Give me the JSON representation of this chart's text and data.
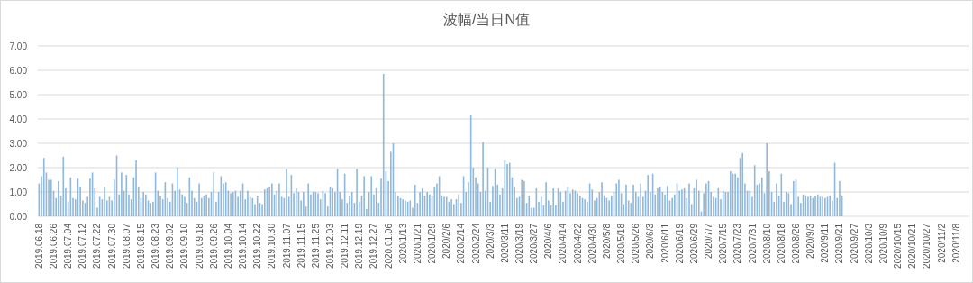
{
  "chart_data": {
    "type": "bar",
    "title": "波幅/当日N值",
    "categories": [
      "2019.06.18",
      null,
      null,
      null,
      null,
      null,
      "2019.06.26",
      null,
      null,
      null,
      null,
      null,
      "2019.07.04",
      null,
      null,
      null,
      null,
      null,
      "2019.07.12",
      null,
      null,
      null,
      null,
      null,
      "2019.07.22",
      null,
      null,
      null,
      null,
      null,
      "2019.07.30",
      null,
      null,
      null,
      null,
      null,
      "2019.08.07",
      null,
      null,
      null,
      null,
      null,
      "2019.08.15",
      null,
      null,
      null,
      null,
      null,
      "2019.08.23",
      null,
      null,
      null,
      null,
      null,
      "2019.09.02",
      null,
      null,
      null,
      null,
      null,
      "2019.09.10",
      null,
      null,
      null,
      null,
      null,
      "2019.09.18",
      null,
      null,
      null,
      null,
      null,
      "2019.09.26",
      null,
      null,
      null,
      null,
      null,
      "2019.10.04",
      null,
      null,
      null,
      null,
      null,
      "2019.10.14",
      null,
      null,
      null,
      null,
      null,
      "2019.10.22",
      null,
      null,
      null,
      null,
      null,
      "2019.10.30",
      null,
      null,
      null,
      null,
      null,
      "2019.11.07",
      null,
      null,
      null,
      null,
      null,
      "2019.11.15",
      null,
      null,
      null,
      null,
      null,
      "2019.11.25",
      null,
      null,
      null,
      null,
      null,
      "2019.12.03",
      null,
      null,
      null,
      null,
      null,
      "2019.12.11",
      null,
      null,
      null,
      null,
      null,
      "2019.12.19",
      null,
      null,
      null,
      null,
      null,
      "2019.12.27",
      null,
      null,
      null,
      null,
      null,
      "2020.01.06",
      null,
      null,
      null,
      null,
      null,
      "2020/1/13",
      null,
      null,
      null,
      null,
      null,
      "2020/1/21",
      null,
      null,
      null,
      null,
      null,
      "2020/1/29",
      null,
      null,
      null,
      null,
      null,
      "2020/2/6",
      null,
      null,
      null,
      null,
      null,
      "2020/2/14",
      null,
      null,
      null,
      null,
      null,
      "2020/2/24",
      null,
      null,
      null,
      null,
      null,
      "2020/3/3",
      null,
      null,
      null,
      null,
      null,
      "2020/3/11",
      null,
      null,
      null,
      null,
      null,
      "2020/3/19",
      null,
      null,
      null,
      null,
      null,
      "2020/3/27",
      null,
      null,
      null,
      null,
      null,
      "2020/4/6",
      null,
      null,
      null,
      null,
      null,
      "2020/4/14",
      null,
      null,
      null,
      null,
      null,
      "2020/4/22",
      null,
      null,
      null,
      null,
      null,
      "2020/4/30",
      null,
      null,
      null,
      null,
      null,
      "2020/5/8",
      null,
      null,
      null,
      null,
      null,
      "2020/5/18",
      null,
      null,
      null,
      null,
      null,
      "2020/5/26",
      null,
      null,
      null,
      null,
      null,
      "2020/6/3",
      null,
      null,
      null,
      null,
      null,
      "2020/6/11",
      null,
      null,
      null,
      null,
      null,
      "2020/6/19",
      null,
      null,
      null,
      null,
      null,
      "2020/6/29",
      null,
      null,
      null,
      null,
      null,
      "2020/7/7",
      null,
      null,
      null,
      null,
      null,
      "2020/7/15",
      null,
      null,
      null,
      null,
      null,
      "2020/7/23",
      null,
      null,
      null,
      null,
      null,
      "2020/7/31",
      null,
      null,
      null,
      null,
      null,
      "2020/8/10",
      null,
      null,
      null,
      null,
      null,
      "2020/8/18",
      null,
      null,
      null,
      null,
      null,
      "2020/8/26",
      null,
      null,
      null,
      null,
      null,
      "2020/9/3",
      null,
      null,
      null,
      null,
      null,
      "2020/9/11",
      null,
      null,
      null,
      null,
      null,
      "2020/9/21",
      null,
      null,
      null,
      null,
      null,
      "2020/9/27",
      null,
      null,
      null,
      null,
      null,
      "2020/10/3",
      null,
      null,
      null,
      null,
      null,
      "2020/10/9",
      null,
      null,
      null,
      null,
      null,
      "2020/10/15",
      null,
      null,
      null,
      null,
      null,
      "2020/10/21",
      null,
      null,
      null,
      null,
      null,
      "2020/10/27",
      null,
      null,
      null,
      null,
      null,
      "2020/11/2",
      null,
      null,
      null,
      null,
      null,
      "2020/11/8",
      null,
      null,
      null,
      null,
      null
    ],
    "values": [
      1.35,
      1.65,
      2.4,
      1.8,
      1.5,
      1.5,
      1.05,
      0.75,
      1.45,
      0.85,
      2.45,
      1.15,
      0.6,
      1.6,
      0.75,
      0.7,
      1.55,
      1.2,
      0.65,
      0.55,
      0.8,
      1.55,
      1.8,
      1.15,
      0.35,
      0.8,
      0.7,
      1.2,
      0.65,
      0.8,
      0.65,
      1.5,
      2.5,
      0.9,
      1.8,
      1.05,
      1.7,
      0.9,
      0.7,
      1.6,
      2.3,
      1.2,
      0.75,
      1.0,
      0.9,
      0.65,
      0.55,
      0.6,
      1.8,
      1.05,
      0.85,
      0.7,
      1.4,
      0.75,
      0.6,
      1.35,
      1.05,
      2.0,
      1.1,
      0.9,
      0.8,
      0.55,
      1.6,
      1.05,
      0.75,
      0.6,
      1.35,
      0.75,
      0.85,
      0.9,
      0.75,
      1.0,
      1.8,
      0.6,
      1.0,
      1.65,
      1.35,
      1.4,
      1.05,
      0.95,
      1.0,
      1.05,
      0.8,
      1.05,
      1.35,
      0.7,
      1.05,
      0.8,
      0.75,
      0.5,
      0.85,
      0.55,
      0.5,
      1.1,
      1.15,
      1.2,
      1.35,
      0.9,
      1.05,
      1.35,
      0.8,
      0.75,
      1.95,
      0.8,
      1.7,
      0.95,
      1.15,
      1.0,
      0.65,
      1.0,
      0.4,
      1.35,
      0.9,
      1.0,
      1.0,
      0.95,
      0.7,
      1.05,
      0.95,
      0.4,
      1.2,
      1.15,
      1.0,
      1.95,
      1.0,
      0.7,
      1.75,
      0.55,
      0.85,
      1.0,
      0.55,
      1.95,
      0.6,
      0.85,
      1.65,
      0.3,
      1.0,
      1.65,
      0.9,
      1.15,
      0.55,
      1.55,
      5.85,
      1.85,
      1.45,
      2.65,
      3.0,
      1.0,
      0.85,
      0.75,
      0.7,
      0.65,
      0.6,
      0.65,
      0.35,
      1.3,
      0.55,
      1.0,
      1.15,
      0.85,
      1.0,
      0.9,
      0.85,
      1.2,
      1.35,
      1.65,
      0.85,
      0.8,
      0.8,
      0.6,
      0.7,
      0.5,
      0.7,
      0.9,
      0.55,
      1.65,
      1.0,
      1.4,
      4.15,
      2.0,
      1.6,
      1.35,
      1.0,
      3.05,
      1.05,
      2.0,
      0.6,
      1.25,
      1.95,
      1.3,
      0.9,
      1.15,
      2.3,
      2.15,
      2.2,
      1.6,
      1.2,
      0.75,
      0.8,
      1.5,
      1.45,
      0.55,
      0.85,
      0.35,
      0.35,
      1.15,
      0.6,
      0.8,
      0.45,
      1.4,
      0.65,
      0.45,
      1.15,
      0.45,
      1.15,
      1.0,
      0.6,
      1.05,
      1.2,
      0.95,
      1.1,
      1.05,
      0.95,
      0.85,
      0.75,
      0.7,
      0.6,
      1.35,
      1.1,
      0.65,
      0.75,
      1.0,
      1.4,
      0.85,
      0.75,
      0.65,
      0.85,
      1.0,
      1.35,
      1.5,
      0.95,
      0.5,
      1.3,
      0.65,
      0.55,
      1.3,
      1.0,
      0.8,
      1.35,
      0.8,
      1.05,
      1.7,
      1.0,
      1.75,
      0.9,
      1.15,
      1.2,
      1.0,
      0.9,
      1.25,
      0.65,
      0.75,
      0.9,
      1.35,
      1.05,
      1.1,
      1.15,
      0.75,
      1.35,
      0.5,
      1.15,
      1.5,
      1.05,
      0.2,
      0.95,
      1.35,
      1.45,
      1.0,
      0.8,
      0.75,
      1.15,
      0.7,
      1.05,
      1.0,
      1.0,
      1.85,
      1.75,
      1.75,
      1.6,
      2.4,
      2.6,
      1.35,
      1.05,
      1.05,
      0.8,
      2.1,
      1.3,
      1.35,
      1.6,
      0.95,
      3.0,
      1.85,
      1.0,
      0.6,
      1.35,
      0.85,
      1.75,
      0.6,
      1.0,
      0.95,
      0.5,
      1.45,
      1.5,
      0.8,
      0.55,
      0.9,
      0.85,
      0.8,
      0.85,
      0.75,
      0.85,
      0.9,
      0.8,
      0.8,
      0.75,
      0.8,
      0.85,
      0.65,
      2.2,
      0.75,
      1.45,
      0.85,
      null,
      null,
      null,
      null,
      null,
      null,
      null,
      null,
      null,
      null,
      null,
      null,
      null,
      null,
      null,
      null,
      null,
      null,
      null,
      null,
      null,
      null,
      null,
      null,
      null,
      null,
      null,
      null,
      null,
      null,
      null,
      null,
      null,
      null,
      null,
      null,
      null,
      null,
      null,
      null,
      null,
      null,
      null,
      null,
      null,
      null,
      null,
      null,
      null,
      null,
      null,
      null
    ],
    "color": "#8fb8dc",
    "ylim": [
      0,
      7
    ],
    "yticks": [
      {
        "value": 0,
        "label": "0.00"
      },
      {
        "value": 1,
        "label": "1.00"
      },
      {
        "value": 2,
        "label": "2.00"
      },
      {
        "value": 3,
        "label": "3.00"
      },
      {
        "value": 4,
        "label": "4.00"
      },
      {
        "value": 5,
        "label": "5.00"
      },
      {
        "value": 6,
        "label": "6.00"
      },
      {
        "value": 7,
        "label": "7.00"
      }
    ],
    "grid": "y"
  }
}
